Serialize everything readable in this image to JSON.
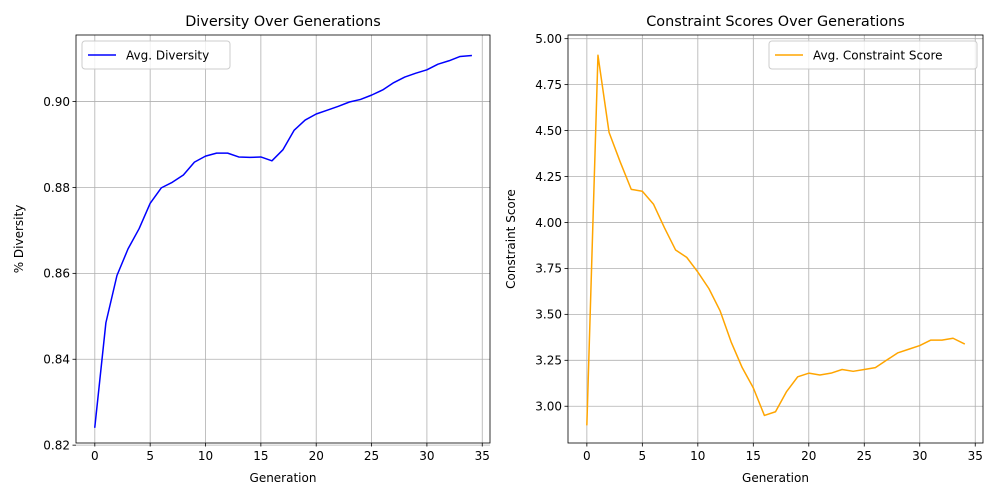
{
  "chart_data": [
    {
      "type": "line",
      "title": "Diversity Over Generations",
      "xlabel": "Generation",
      "ylabel": "% Diversity",
      "xlim": [
        -1.7,
        35.7
      ],
      "ylim": [
        0.8205,
        0.9155
      ],
      "xticks": [
        0,
        5,
        10,
        15,
        20,
        25,
        30,
        35
      ],
      "xtick_labels": [
        "0",
        "5",
        "10",
        "15",
        "20",
        "25",
        "30",
        "35"
      ],
      "yticks": [
        0.82,
        0.84,
        0.86,
        0.88,
        0.9
      ],
      "ytick_labels": [
        "0.82",
        "0.84",
        "0.86",
        "0.88",
        "0.90"
      ],
      "grid": true,
      "legend_position": "top-left",
      "series": [
        {
          "name": "Avg. Diversity",
          "color": "#0000ff",
          "x": [
            0,
            1,
            2,
            3,
            4,
            5,
            6,
            7,
            8,
            9,
            10,
            11,
            12,
            13,
            14,
            15,
            16,
            17,
            18,
            19,
            20,
            21,
            22,
            23,
            24,
            25,
            26,
            27,
            28,
            29,
            30,
            31,
            32,
            33,
            34
          ],
          "values": [
            0.8242,
            0.8485,
            0.8595,
            0.8657,
            0.8704,
            0.8763,
            0.8799,
            0.8812,
            0.8829,
            0.8859,
            0.8873,
            0.888,
            0.888,
            0.8871,
            0.887,
            0.8871,
            0.8862,
            0.8888,
            0.8933,
            0.8957,
            0.8971,
            0.898,
            0.8989,
            0.8999,
            0.9005,
            0.9015,
            0.9027,
            0.9044,
            0.9057,
            0.9066,
            0.9074,
            0.9087,
            0.9095,
            0.9105,
            0.9107
          ]
        }
      ]
    },
    {
      "type": "line",
      "title": "Constraint Scores Over Generations",
      "xlabel": "Generation",
      "ylabel": "Constraint Score",
      "xlim": [
        -1.7,
        35.7
      ],
      "ylim": [
        2.8,
        5.02
      ],
      "xticks": [
        0,
        5,
        10,
        15,
        20,
        25,
        30,
        35
      ],
      "xtick_labels": [
        "0",
        "5",
        "10",
        "15",
        "20",
        "25",
        "30",
        "35"
      ],
      "yticks": [
        3.0,
        3.25,
        3.5,
        3.75,
        4.0,
        4.25,
        4.5,
        4.75,
        5.0
      ],
      "ytick_labels": [
        "3.00",
        "3.25",
        "3.50",
        "3.75",
        "4.00",
        "4.25",
        "4.50",
        "4.75",
        "5.00"
      ],
      "grid": true,
      "legend_position": "top-right",
      "series": [
        {
          "name": "Avg. Constraint Score",
          "color": "#ffa500",
          "x": [
            0,
            1,
            2,
            3,
            4,
            5,
            6,
            7,
            8,
            9,
            10,
            11,
            12,
            13,
            14,
            15,
            16,
            17,
            18,
            19,
            20,
            21,
            22,
            23,
            24,
            25,
            26,
            27,
            28,
            29,
            30,
            31,
            32,
            33,
            34
          ],
          "values": [
            2.9,
            4.91,
            4.49,
            4.33,
            4.18,
            4.17,
            4.1,
            3.97,
            3.85,
            3.81,
            3.73,
            3.64,
            3.52,
            3.35,
            3.21,
            3.1,
            2.95,
            2.97,
            3.08,
            3.16,
            3.18,
            3.17,
            3.18,
            3.2,
            3.19,
            3.2,
            3.21,
            3.25,
            3.29,
            3.31,
            3.33,
            3.36,
            3.36,
            3.37,
            3.34
          ]
        }
      ]
    }
  ]
}
